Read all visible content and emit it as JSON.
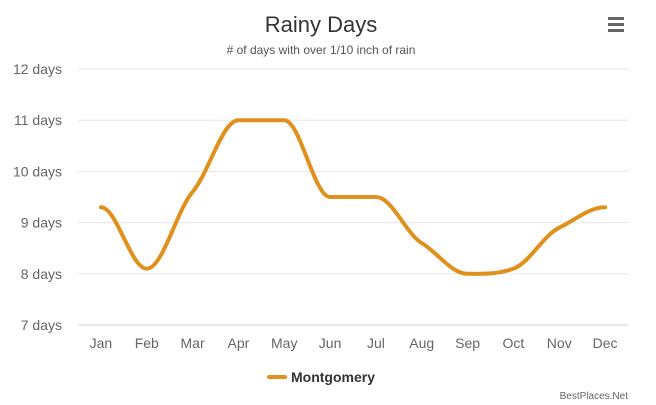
{
  "chart_data": {
    "type": "line",
    "title": "Rainy Days",
    "subtitle": "# of days with over 1/10 inch of rain",
    "categories": [
      "Jan",
      "Feb",
      "Mar",
      "Apr",
      "May",
      "Jun",
      "Jul",
      "Aug",
      "Sep",
      "Oct",
      "Nov",
      "Dec"
    ],
    "series": [
      {
        "name": "Montgomery",
        "values": [
          9.3,
          8.1,
          9.6,
          11.0,
          11.0,
          9.5,
          9.5,
          8.6,
          8.0,
          8.1,
          8.9,
          9.3
        ],
        "color": "#e0901d"
      }
    ],
    "ylim": [
      7,
      12
    ],
    "yticks": [
      7,
      8,
      9,
      10,
      11,
      12
    ],
    "ytick_suffix": " days",
    "grid": true,
    "legend_position": "bottom-center"
  },
  "menu_icon": "hamburger-menu-icon",
  "credits": "BestPlaces.Net"
}
